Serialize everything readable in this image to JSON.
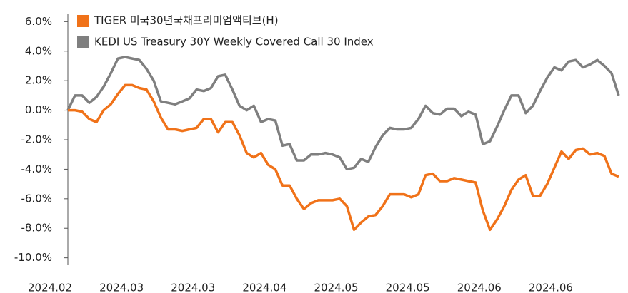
{
  "chart_data": {
    "type": "line",
    "categories": [
      "2024.02",
      null,
      null,
      null,
      null,
      null,
      null,
      null,
      null,
      null,
      "2024.03",
      null,
      null,
      null,
      null,
      null,
      null,
      null,
      null,
      null,
      "2024.03",
      null,
      null,
      null,
      null,
      null,
      null,
      null,
      null,
      null,
      "2024.04",
      null,
      null,
      null,
      null,
      null,
      null,
      null,
      null,
      null,
      "2024.05",
      null,
      null,
      null,
      null,
      null,
      null,
      null,
      null,
      null,
      "2024.05",
      null,
      null,
      null,
      null,
      null,
      null,
      null,
      null,
      null,
      "2024.06",
      null,
      null,
      null,
      null,
      null,
      null,
      null,
      null,
      null,
      "2024.06",
      null,
      null,
      null,
      null,
      null,
      null,
      null
    ],
    "series": [
      {
        "name": "TIGER 미국30년국채프리미엄액티브(H)",
        "color": "#f07219",
        "values": [
          0.0,
          0.0,
          -0.1,
          -0.6,
          -0.8,
          0.0,
          0.4,
          1.1,
          1.7,
          1.7,
          1.5,
          1.4,
          0.6,
          -0.5,
          -1.3,
          -1.3,
          -1.4,
          -1.3,
          -1.2,
          -0.6,
          -0.6,
          -1.5,
          -0.8,
          -0.8,
          -1.7,
          -2.9,
          -3.2,
          -2.9,
          -3.7,
          -4.0,
          -5.1,
          -5.1,
          -6.0,
          -6.7,
          -6.3,
          -6.1,
          -6.1,
          -6.1,
          -6.0,
          -6.5,
          -8.1,
          -7.6,
          -7.2,
          -7.1,
          -6.5,
          -5.7,
          -5.7,
          -5.7,
          -5.9,
          -5.7,
          -4.4,
          -4.3,
          -4.8,
          -4.8,
          -4.6,
          -4.7,
          -4.8,
          -4.9,
          -6.8,
          -8.1,
          -7.4,
          -6.5,
          -5.4,
          -4.7,
          -4.4,
          -5.8,
          -5.8,
          -5.0,
          -3.9,
          -2.8,
          -3.3,
          -2.7,
          -2.6,
          -3.0,
          -2.9,
          -3.1,
          -4.3,
          -4.5
        ]
      },
      {
        "name": "KEDI US Treasury 30Y Weekly Covered Call 30 Index",
        "color": "#7f7f7f",
        "values": [
          0.0,
          1.0,
          1.0,
          0.5,
          0.9,
          1.6,
          2.5,
          3.5,
          3.6,
          3.5,
          3.4,
          2.8,
          2.0,
          0.6,
          0.5,
          0.4,
          0.6,
          0.8,
          1.4,
          1.3,
          1.5,
          2.3,
          2.4,
          1.4,
          0.3,
          0.0,
          0.3,
          -0.8,
          -0.6,
          -0.7,
          -2.4,
          -2.3,
          -3.4,
          -3.4,
          -3.0,
          -3.0,
          -2.9,
          -3.0,
          -3.2,
          -4.0,
          -3.9,
          -3.3,
          -3.5,
          -2.5,
          -1.7,
          -1.2,
          -1.3,
          -1.3,
          -1.2,
          -0.6,
          0.3,
          -0.2,
          -0.3,
          0.1,
          0.1,
          -0.4,
          -0.1,
          -0.3,
          -2.3,
          -2.1,
          -1.1,
          0.0,
          1.0,
          1.0,
          -0.2,
          0.3,
          1.3,
          2.2,
          2.9,
          2.7,
          3.3,
          3.4,
          2.9,
          3.1,
          3.4,
          3.0,
          2.5,
          1.0
        ]
      }
    ],
    "ylim": [
      -10.5,
      6.5
    ],
    "yticks": [
      {
        "value": 6,
        "label": "6.0%"
      },
      {
        "value": 4,
        "label": "4.0%"
      },
      {
        "value": 2,
        "label": "2.0%"
      },
      {
        "value": 0,
        "label": "0.0%"
      },
      {
        "value": -2,
        "label": "-2.0%"
      },
      {
        "value": -4,
        "label": "-4.0%"
      },
      {
        "value": -6,
        "label": "-6.0%"
      },
      {
        "value": -8,
        "label": "-8.0%"
      },
      {
        "value": -10,
        "label": "-10.0%"
      }
    ],
    "legend": "upper left"
  }
}
